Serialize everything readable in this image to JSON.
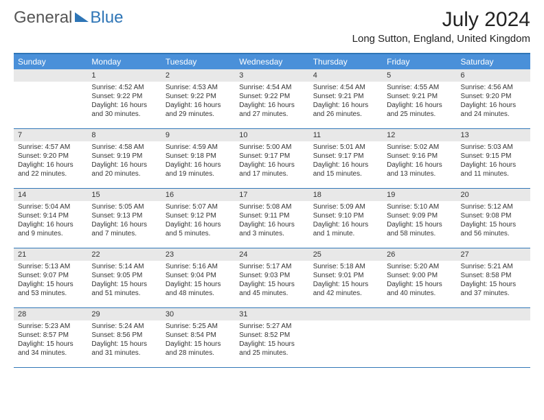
{
  "logo": {
    "general": "General",
    "blue": "Blue"
  },
  "title": "July 2024",
  "location": "Long Sutton, England, United Kingdom",
  "day_headers": [
    "Sunday",
    "Monday",
    "Tuesday",
    "Wednesday",
    "Thursday",
    "Friday",
    "Saturday"
  ],
  "colors": {
    "accent": "#2e75b6",
    "header_bg": "#4a90d9",
    "daynum_bg": "#e8e8e8"
  },
  "weeks": [
    [
      {
        "num": "",
        "lines": []
      },
      {
        "num": "1",
        "lines": [
          "Sunrise: 4:52 AM",
          "Sunset: 9:22 PM",
          "Daylight: 16 hours",
          "and 30 minutes."
        ]
      },
      {
        "num": "2",
        "lines": [
          "Sunrise: 4:53 AM",
          "Sunset: 9:22 PM",
          "Daylight: 16 hours",
          "and 29 minutes."
        ]
      },
      {
        "num": "3",
        "lines": [
          "Sunrise: 4:54 AM",
          "Sunset: 9:22 PM",
          "Daylight: 16 hours",
          "and 27 minutes."
        ]
      },
      {
        "num": "4",
        "lines": [
          "Sunrise: 4:54 AM",
          "Sunset: 9:21 PM",
          "Daylight: 16 hours",
          "and 26 minutes."
        ]
      },
      {
        "num": "5",
        "lines": [
          "Sunrise: 4:55 AM",
          "Sunset: 9:21 PM",
          "Daylight: 16 hours",
          "and 25 minutes."
        ]
      },
      {
        "num": "6",
        "lines": [
          "Sunrise: 4:56 AM",
          "Sunset: 9:20 PM",
          "Daylight: 16 hours",
          "and 24 minutes."
        ]
      }
    ],
    [
      {
        "num": "7",
        "lines": [
          "Sunrise: 4:57 AM",
          "Sunset: 9:20 PM",
          "Daylight: 16 hours",
          "and 22 minutes."
        ]
      },
      {
        "num": "8",
        "lines": [
          "Sunrise: 4:58 AM",
          "Sunset: 9:19 PM",
          "Daylight: 16 hours",
          "and 20 minutes."
        ]
      },
      {
        "num": "9",
        "lines": [
          "Sunrise: 4:59 AM",
          "Sunset: 9:18 PM",
          "Daylight: 16 hours",
          "and 19 minutes."
        ]
      },
      {
        "num": "10",
        "lines": [
          "Sunrise: 5:00 AM",
          "Sunset: 9:17 PM",
          "Daylight: 16 hours",
          "and 17 minutes."
        ]
      },
      {
        "num": "11",
        "lines": [
          "Sunrise: 5:01 AM",
          "Sunset: 9:17 PM",
          "Daylight: 16 hours",
          "and 15 minutes."
        ]
      },
      {
        "num": "12",
        "lines": [
          "Sunrise: 5:02 AM",
          "Sunset: 9:16 PM",
          "Daylight: 16 hours",
          "and 13 minutes."
        ]
      },
      {
        "num": "13",
        "lines": [
          "Sunrise: 5:03 AM",
          "Sunset: 9:15 PM",
          "Daylight: 16 hours",
          "and 11 minutes."
        ]
      }
    ],
    [
      {
        "num": "14",
        "lines": [
          "Sunrise: 5:04 AM",
          "Sunset: 9:14 PM",
          "Daylight: 16 hours",
          "and 9 minutes."
        ]
      },
      {
        "num": "15",
        "lines": [
          "Sunrise: 5:05 AM",
          "Sunset: 9:13 PM",
          "Daylight: 16 hours",
          "and 7 minutes."
        ]
      },
      {
        "num": "16",
        "lines": [
          "Sunrise: 5:07 AM",
          "Sunset: 9:12 PM",
          "Daylight: 16 hours",
          "and 5 minutes."
        ]
      },
      {
        "num": "17",
        "lines": [
          "Sunrise: 5:08 AM",
          "Sunset: 9:11 PM",
          "Daylight: 16 hours",
          "and 3 minutes."
        ]
      },
      {
        "num": "18",
        "lines": [
          "Sunrise: 5:09 AM",
          "Sunset: 9:10 PM",
          "Daylight: 16 hours",
          "and 1 minute."
        ]
      },
      {
        "num": "19",
        "lines": [
          "Sunrise: 5:10 AM",
          "Sunset: 9:09 PM",
          "Daylight: 15 hours",
          "and 58 minutes."
        ]
      },
      {
        "num": "20",
        "lines": [
          "Sunrise: 5:12 AM",
          "Sunset: 9:08 PM",
          "Daylight: 15 hours",
          "and 56 minutes."
        ]
      }
    ],
    [
      {
        "num": "21",
        "lines": [
          "Sunrise: 5:13 AM",
          "Sunset: 9:07 PM",
          "Daylight: 15 hours",
          "and 53 minutes."
        ]
      },
      {
        "num": "22",
        "lines": [
          "Sunrise: 5:14 AM",
          "Sunset: 9:05 PM",
          "Daylight: 15 hours",
          "and 51 minutes."
        ]
      },
      {
        "num": "23",
        "lines": [
          "Sunrise: 5:16 AM",
          "Sunset: 9:04 PM",
          "Daylight: 15 hours",
          "and 48 minutes."
        ]
      },
      {
        "num": "24",
        "lines": [
          "Sunrise: 5:17 AM",
          "Sunset: 9:03 PM",
          "Daylight: 15 hours",
          "and 45 minutes."
        ]
      },
      {
        "num": "25",
        "lines": [
          "Sunrise: 5:18 AM",
          "Sunset: 9:01 PM",
          "Daylight: 15 hours",
          "and 42 minutes."
        ]
      },
      {
        "num": "26",
        "lines": [
          "Sunrise: 5:20 AM",
          "Sunset: 9:00 PM",
          "Daylight: 15 hours",
          "and 40 minutes."
        ]
      },
      {
        "num": "27",
        "lines": [
          "Sunrise: 5:21 AM",
          "Sunset: 8:58 PM",
          "Daylight: 15 hours",
          "and 37 minutes."
        ]
      }
    ],
    [
      {
        "num": "28",
        "lines": [
          "Sunrise: 5:23 AM",
          "Sunset: 8:57 PM",
          "Daylight: 15 hours",
          "and 34 minutes."
        ]
      },
      {
        "num": "29",
        "lines": [
          "Sunrise: 5:24 AM",
          "Sunset: 8:56 PM",
          "Daylight: 15 hours",
          "and 31 minutes."
        ]
      },
      {
        "num": "30",
        "lines": [
          "Sunrise: 5:25 AM",
          "Sunset: 8:54 PM",
          "Daylight: 15 hours",
          "and 28 minutes."
        ]
      },
      {
        "num": "31",
        "lines": [
          "Sunrise: 5:27 AM",
          "Sunset: 8:52 PM",
          "Daylight: 15 hours",
          "and 25 minutes."
        ]
      },
      {
        "num": "",
        "lines": []
      },
      {
        "num": "",
        "lines": []
      },
      {
        "num": "",
        "lines": []
      }
    ]
  ]
}
